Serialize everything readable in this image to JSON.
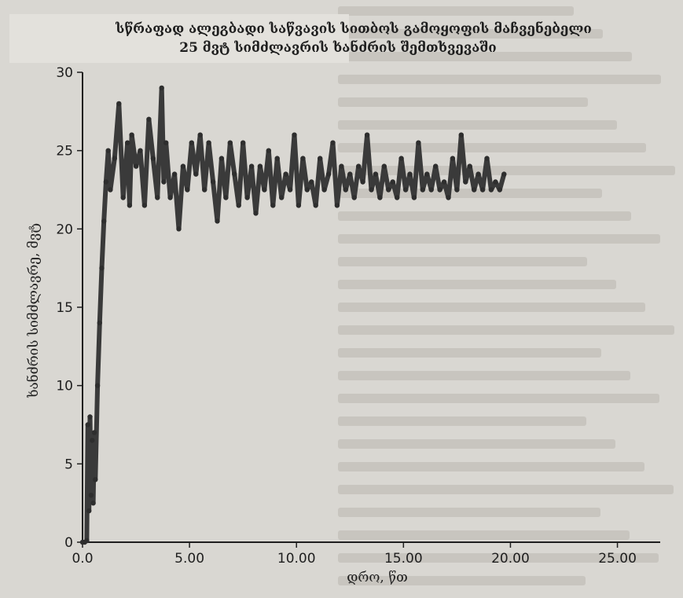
{
  "chart_data": {
    "type": "line",
    "title": "სწრაფად ალეგბადი საწვავის სითბოს გამოყოფის მაჩვენებელი",
    "subtitle": "25 მვტ სიმძლავრის ხანძრის შემთხვევაში",
    "xlabel": "დრო, წთ",
    "ylabel": "ხანძრის სიმძლავრე, მვტ",
    "xlim": [
      0,
      27
    ],
    "ylim": [
      0,
      30
    ],
    "x_ticks": [
      "0.0",
      "5.00",
      "10.00",
      "15.00",
      "20.00",
      "25.00"
    ],
    "x_tick_values": [
      0,
      5,
      10,
      15,
      20,
      25
    ],
    "y_ticks": [
      "0",
      "5",
      "10",
      "15",
      "20",
      "25",
      "30"
    ],
    "y_tick_values": [
      0,
      5,
      10,
      15,
      20,
      25,
      30
    ],
    "grid": false,
    "colors": {
      "series": "#3a3a3a",
      "axis": "#1e1e1e"
    },
    "series": [
      {
        "x": [
          0,
          0.1,
          0.2,
          0.25,
          0.3,
          0.35,
          0.4,
          0.45,
          0.5,
          0.55,
          0.6,
          0.7,
          0.8,
          0.9,
          1.0,
          1.1,
          1.2,
          1.3,
          1.5,
          1.7,
          1.9,
          2.1,
          2.2,
          2.3,
          2.5,
          2.7,
          2.9,
          3.1,
          3.3,
          3.5,
          3.7,
          3.8,
          3.9,
          4.1,
          4.3,
          4.5,
          4.7,
          4.9,
          5.1,
          5.3,
          5.5,
          5.7,
          5.9,
          6.1,
          6.3,
          6.5,
          6.7,
          6.9,
          7.1,
          7.3,
          7.5,
          7.7,
          7.9,
          8.1,
          8.3,
          8.5,
          8.7,
          8.9,
          9.1,
          9.3,
          9.5,
          9.7,
          9.9,
          10.1,
          10.3,
          10.5,
          10.7,
          10.9,
          11.1,
          11.3,
          11.5,
          11.7,
          11.9,
          12.1,
          12.3,
          12.5,
          12.7,
          12.9,
          13.1,
          13.3,
          13.5,
          13.7,
          13.9,
          14.1,
          14.3,
          14.5,
          14.7,
          14.9,
          15.1,
          15.3,
          15.5,
          15.7,
          15.9,
          16.1,
          16.3,
          16.5,
          16.7,
          16.9,
          17.1,
          17.3,
          17.5,
          17.7,
          17.9,
          18.1,
          18.3,
          18.5,
          18.7,
          18.9,
          19.1,
          19.3,
          19.5,
          19.7
        ],
        "y": [
          0,
          0,
          0.1,
          7.5,
          2.0,
          8.0,
          3.0,
          6.5,
          2.5,
          7.0,
          4.0,
          10.0,
          14.0,
          17.5,
          20.5,
          23.0,
          25.0,
          22.5,
          24.5,
          28.0,
          22.0,
          25.5,
          21.5,
          26.0,
          24.0,
          25.0,
          21.5,
          27.0,
          24.5,
          22.0,
          29.0,
          23.0,
          25.5,
          22.0,
          23.5,
          20.0,
          24.0,
          22.5,
          25.5,
          23.5,
          26.0,
          22.5,
          25.5,
          23.0,
          20.5,
          24.5,
          22.0,
          25.5,
          23.5,
          21.5,
          25.5,
          22.0,
          24.0,
          21.0,
          24.0,
          22.5,
          25.0,
          21.5,
          24.5,
          22.0,
          23.5,
          22.5,
          26.0,
          21.5,
          24.5,
          22.5,
          23.0,
          21.5,
          24.5,
          22.5,
          23.5,
          25.5,
          21.5,
          24.0,
          22.5,
          23.5,
          22.0,
          24.0,
          23.0,
          26.0,
          22.5,
          23.5,
          22.0,
          24.0,
          22.5,
          23.0,
          22.0,
          24.5,
          22.5,
          23.5,
          22.0,
          25.5,
          22.5,
          23.5,
          22.5,
          24.0,
          22.5,
          23.0,
          22.0,
          24.5,
          22.5,
          26.0,
          23.0,
          24.0,
          22.5,
          23.5,
          22.5,
          24.5,
          22.5,
          23.0,
          22.5,
          23.5
        ]
      }
    ]
  },
  "colors": {
    "paper": "#d9d7d2",
    "ink": "#1e1e1e"
  }
}
